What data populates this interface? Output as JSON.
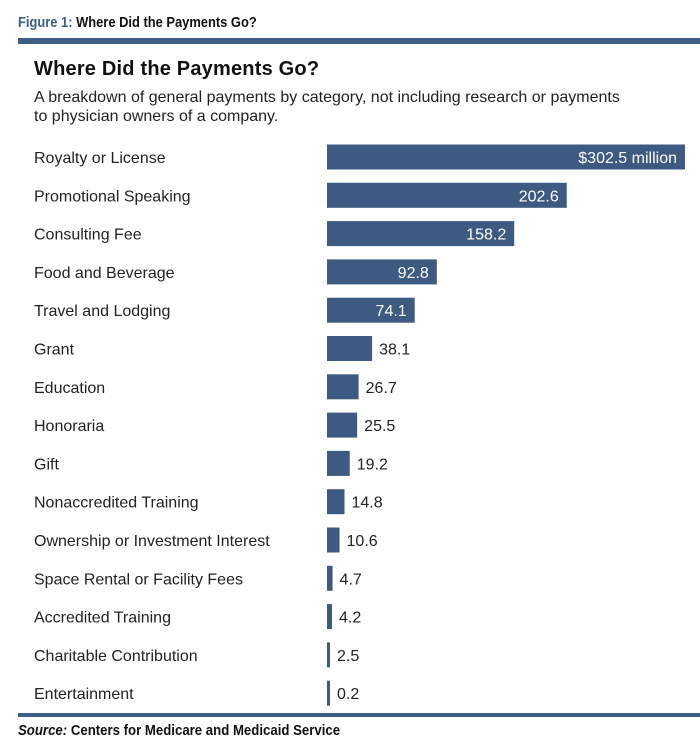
{
  "figure": {
    "number_label": "Figure 1",
    "colon": ":",
    "title": "Where Did the Payments Go?"
  },
  "source": {
    "label": "Source:",
    "text": "Centers for Medicare and Medicaid Service"
  },
  "colors": {
    "bar": "#3d5a80",
    "rule": "#3f5f86",
    "label_inside": "#ffffff",
    "label_outside": "#222222"
  },
  "chart_data": {
    "type": "bar",
    "orientation": "horizontal",
    "title": "Where Did the Payments Go?",
    "subtitle": "A breakdown of general payments by category, not including research or payments to physician owners of a company.",
    "categories": [
      "Royalty or License",
      "Promotional Speaking",
      "Consulting Fee",
      "Food and Beverage",
      "Travel and Lodging",
      "Grant",
      "Education",
      "Honoraria",
      "Gift",
      "Nonaccredited Training",
      "Ownership or Investment Interest",
      "Space Rental or Facility Fees",
      "Accredited Training",
      "Charitable Contribution",
      "Entertainment"
    ],
    "values": [
      302.5,
      202.6,
      158.2,
      92.8,
      74.1,
      38.1,
      26.7,
      25.5,
      19.2,
      14.8,
      10.6,
      4.7,
      4.2,
      2.5,
      0.2
    ],
    "value_labels": [
      "$302.5 million",
      "202.6",
      "158.2",
      "92.8",
      "74.1",
      "38.1",
      "26.7",
      "25.5",
      "19.2",
      "14.8",
      "10.6",
      "4.7",
      "4.2",
      "2.5",
      "0.2"
    ],
    "unit": "million",
    "labels_inside_above": 70,
    "xlim": [
      0,
      302.5
    ],
    "grid": false,
    "legend": "none"
  }
}
